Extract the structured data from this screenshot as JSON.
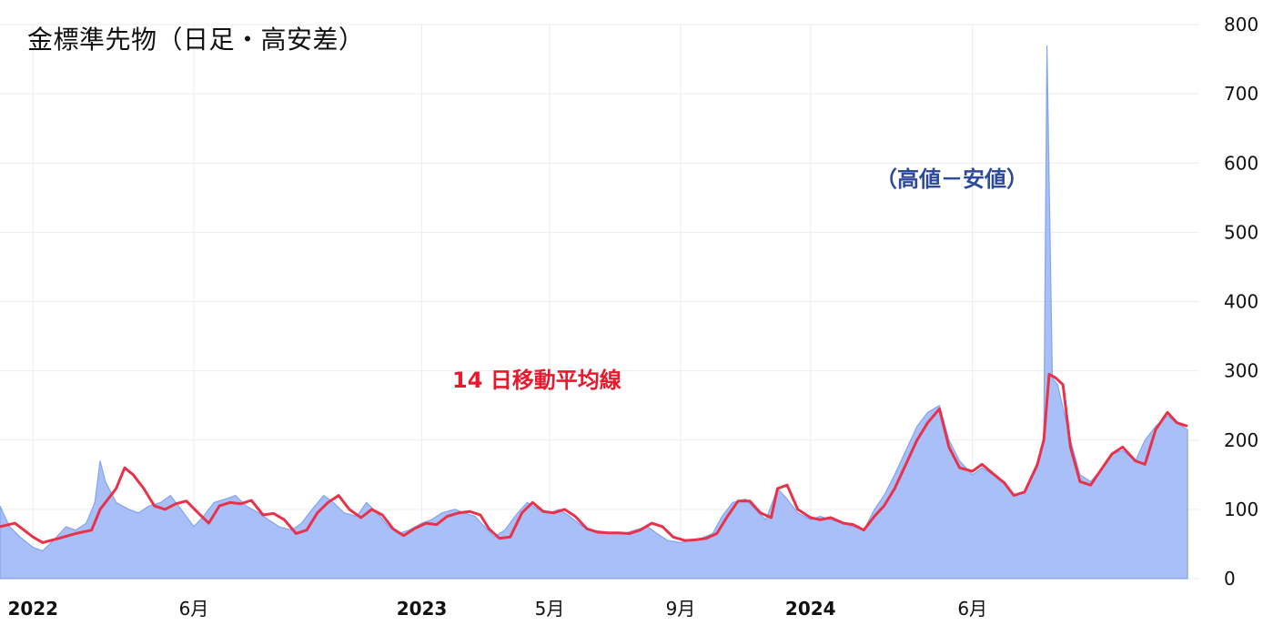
{
  "chart_data": {
    "type": "area",
    "title": "金標準先物（日足・高安差）",
    "annotations": {
      "range_label": "（高値－安値）",
      "ma_label": "14 日移動平均線"
    },
    "ylim": [
      0,
      800
    ],
    "y_ticks": [
      0,
      100,
      200,
      300,
      400,
      500,
      600,
      700,
      800
    ],
    "grid": true,
    "x_ticks": [
      {
        "date": "2022-01-01",
        "label": "2022",
        "bold": true
      },
      {
        "date": "2022-06-01",
        "label": "6月",
        "bold": false
      },
      {
        "date": "2023-01-01",
        "label": "2023",
        "bold": true
      },
      {
        "date": "2023-05-01",
        "label": "5月",
        "bold": false
      },
      {
        "date": "2023-09-01",
        "label": "9月",
        "bold": false
      },
      {
        "date": "2024-01-01",
        "label": "2024",
        "bold": true
      },
      {
        "date": "2024-06-01",
        "label": "6月",
        "bold": false
      }
    ],
    "x_range": [
      "2021-12-01",
      "2024-12-31"
    ],
    "series": [
      {
        "key": "range",
        "name": "（高値－安値）",
        "style": "area",
        "color": "#7b9ef0",
        "fill": "#a9bff8",
        "points": [
          [
            "2021-12-01",
            105
          ],
          [
            "2021-12-10",
            75
          ],
          [
            "2021-12-20",
            60
          ],
          [
            "2022-01-01",
            45
          ],
          [
            "2022-01-10",
            40
          ],
          [
            "2022-01-20",
            55
          ],
          [
            "2022-02-01",
            75
          ],
          [
            "2022-02-10",
            70
          ],
          [
            "2022-02-20",
            80
          ],
          [
            "2022-02-28",
            110
          ],
          [
            "2022-03-05",
            170
          ],
          [
            "2022-03-10",
            140
          ],
          [
            "2022-03-20",
            110
          ],
          [
            "2022-04-01",
            100
          ],
          [
            "2022-04-10",
            95
          ],
          [
            "2022-04-20",
            105
          ],
          [
            "2022-05-01",
            110
          ],
          [
            "2022-05-10",
            120
          ],
          [
            "2022-05-20",
            100
          ],
          [
            "2022-06-01",
            75
          ],
          [
            "2022-06-10",
            90
          ],
          [
            "2022-06-20",
            110
          ],
          [
            "2022-07-01",
            115
          ],
          [
            "2022-07-10",
            120
          ],
          [
            "2022-07-20",
            105
          ],
          [
            "2022-08-01",
            95
          ],
          [
            "2022-08-10",
            85
          ],
          [
            "2022-08-20",
            75
          ],
          [
            "2022-09-01",
            70
          ],
          [
            "2022-09-10",
            80
          ],
          [
            "2022-09-20",
            100
          ],
          [
            "2022-10-01",
            120
          ],
          [
            "2022-10-10",
            110
          ],
          [
            "2022-10-20",
            95
          ],
          [
            "2022-11-01",
            90
          ],
          [
            "2022-11-10",
            110
          ],
          [
            "2022-11-20",
            95
          ],
          [
            "2022-12-01",
            75
          ],
          [
            "2022-12-10",
            65
          ],
          [
            "2022-12-20",
            70
          ],
          [
            "2023-01-01",
            80
          ],
          [
            "2023-01-10",
            85
          ],
          [
            "2023-01-20",
            95
          ],
          [
            "2023-02-01",
            100
          ],
          [
            "2023-02-10",
            95
          ],
          [
            "2023-02-20",
            90
          ],
          [
            "2023-03-01",
            75
          ],
          [
            "2023-03-10",
            60
          ],
          [
            "2023-03-20",
            70
          ],
          [
            "2023-04-01",
            95
          ],
          [
            "2023-04-10",
            110
          ],
          [
            "2023-04-20",
            100
          ],
          [
            "2023-05-01",
            95
          ],
          [
            "2023-05-10",
            100
          ],
          [
            "2023-05-20",
            90
          ],
          [
            "2023-06-01",
            75
          ],
          [
            "2023-06-10",
            70
          ],
          [
            "2023-06-20",
            68
          ],
          [
            "2023-07-01",
            66
          ],
          [
            "2023-07-10",
            65
          ],
          [
            "2023-07-20",
            70
          ],
          [
            "2023-08-01",
            75
          ],
          [
            "2023-08-10",
            65
          ],
          [
            "2023-08-20",
            55
          ],
          [
            "2023-09-01",
            52
          ],
          [
            "2023-09-10",
            55
          ],
          [
            "2023-09-20",
            58
          ],
          [
            "2023-10-01",
            65
          ],
          [
            "2023-10-10",
            90
          ],
          [
            "2023-10-20",
            110
          ],
          [
            "2023-11-01",
            115
          ],
          [
            "2023-11-10",
            100
          ],
          [
            "2023-11-20",
            85
          ],
          [
            "2023-12-01",
            130
          ],
          [
            "2023-12-10",
            115
          ],
          [
            "2023-12-20",
            95
          ],
          [
            "2024-01-01",
            85
          ],
          [
            "2024-01-10",
            90
          ],
          [
            "2024-01-20",
            85
          ],
          [
            "2024-02-01",
            80
          ],
          [
            "2024-02-10",
            75
          ],
          [
            "2024-02-20",
            70
          ],
          [
            "2024-03-01",
            100
          ],
          [
            "2024-03-10",
            120
          ],
          [
            "2024-03-20",
            150
          ],
          [
            "2024-04-01",
            190
          ],
          [
            "2024-04-10",
            220
          ],
          [
            "2024-04-20",
            240
          ],
          [
            "2024-05-01",
            250
          ],
          [
            "2024-05-10",
            200
          ],
          [
            "2024-05-20",
            170
          ],
          [
            "2024-06-01",
            150
          ],
          [
            "2024-06-10",
            160
          ],
          [
            "2024-06-20",
            150
          ],
          [
            "2024-07-01",
            140
          ],
          [
            "2024-07-10",
            120
          ],
          [
            "2024-07-20",
            125
          ],
          [
            "2024-08-01",
            160
          ],
          [
            "2024-08-07",
            200
          ],
          [
            "2024-08-10",
            770
          ],
          [
            "2024-08-15",
            290
          ],
          [
            "2024-08-20",
            280
          ],
          [
            "2024-09-01",
            200
          ],
          [
            "2024-09-10",
            150
          ],
          [
            "2024-09-20",
            140
          ],
          [
            "2024-10-01",
            160
          ],
          [
            "2024-10-10",
            180
          ],
          [
            "2024-10-20",
            185
          ],
          [
            "2024-11-01",
            170
          ],
          [
            "2024-11-10",
            200
          ],
          [
            "2024-11-20",
            220
          ],
          [
            "2024-12-01",
            235
          ],
          [
            "2024-12-10",
            225
          ],
          [
            "2024-12-20",
            215
          ]
        ]
      },
      {
        "key": "ma",
        "name": "14 日移動平均線",
        "style": "line",
        "color": "#e8324a",
        "points": [
          [
            "2021-12-01",
            75
          ],
          [
            "2021-12-15",
            80
          ],
          [
            "2022-01-01",
            60
          ],
          [
            "2022-01-10",
            52
          ],
          [
            "2022-01-25",
            58
          ],
          [
            "2022-02-10",
            65
          ],
          [
            "2022-02-25",
            70
          ],
          [
            "2022-03-05",
            100
          ],
          [
            "2022-03-20",
            130
          ],
          [
            "2022-03-28",
            160
          ],
          [
            "2022-04-05",
            150
          ],
          [
            "2022-04-15",
            130
          ],
          [
            "2022-04-25",
            105
          ],
          [
            "2022-05-05",
            100
          ],
          [
            "2022-05-15",
            108
          ],
          [
            "2022-05-25",
            112
          ],
          [
            "2022-06-05",
            95
          ],
          [
            "2022-06-15",
            80
          ],
          [
            "2022-06-25",
            105
          ],
          [
            "2022-07-05",
            110
          ],
          [
            "2022-07-15",
            108
          ],
          [
            "2022-07-25",
            113
          ],
          [
            "2022-08-05",
            92
          ],
          [
            "2022-08-15",
            94
          ],
          [
            "2022-08-25",
            85
          ],
          [
            "2022-09-05",
            65
          ],
          [
            "2022-09-15",
            70
          ],
          [
            "2022-09-25",
            95
          ],
          [
            "2022-10-05",
            110
          ],
          [
            "2022-10-15",
            120
          ],
          [
            "2022-10-25",
            100
          ],
          [
            "2022-11-05",
            88
          ],
          [
            "2022-11-15",
            100
          ],
          [
            "2022-11-25",
            92
          ],
          [
            "2022-12-05",
            72
          ],
          [
            "2022-12-15",
            62
          ],
          [
            "2022-12-25",
            72
          ],
          [
            "2023-01-05",
            80
          ],
          [
            "2023-01-15",
            78
          ],
          [
            "2023-01-25",
            90
          ],
          [
            "2023-02-05",
            95
          ],
          [
            "2023-02-15",
            97
          ],
          [
            "2023-02-25",
            92
          ],
          [
            "2023-03-05",
            72
          ],
          [
            "2023-03-15",
            58
          ],
          [
            "2023-03-25",
            60
          ],
          [
            "2023-04-05",
            95
          ],
          [
            "2023-04-15",
            110
          ],
          [
            "2023-04-25",
            97
          ],
          [
            "2023-05-05",
            95
          ],
          [
            "2023-05-15",
            100
          ],
          [
            "2023-05-25",
            90
          ],
          [
            "2023-06-05",
            72
          ],
          [
            "2023-06-15",
            67
          ],
          [
            "2023-06-25",
            66
          ],
          [
            "2023-07-05",
            66
          ],
          [
            "2023-07-15",
            65
          ],
          [
            "2023-07-25",
            70
          ],
          [
            "2023-08-05",
            80
          ],
          [
            "2023-08-15",
            75
          ],
          [
            "2023-08-25",
            60
          ],
          [
            "2023-09-05",
            55
          ],
          [
            "2023-09-15",
            56
          ],
          [
            "2023-09-25",
            58
          ],
          [
            "2023-10-05",
            65
          ],
          [
            "2023-10-15",
            90
          ],
          [
            "2023-10-25",
            112
          ],
          [
            "2023-11-05",
            112
          ],
          [
            "2023-11-15",
            95
          ],
          [
            "2023-11-25",
            88
          ],
          [
            "2023-12-01",
            130
          ],
          [
            "2023-12-10",
            135
          ],
          [
            "2023-12-20",
            100
          ],
          [
            "2024-01-01",
            88
          ],
          [
            "2024-01-10",
            85
          ],
          [
            "2024-01-20",
            88
          ],
          [
            "2024-02-01",
            80
          ],
          [
            "2024-02-10",
            78
          ],
          [
            "2024-02-20",
            70
          ],
          [
            "2024-03-01",
            90
          ],
          [
            "2024-03-10",
            105
          ],
          [
            "2024-03-20",
            130
          ],
          [
            "2024-04-01",
            170
          ],
          [
            "2024-04-10",
            200
          ],
          [
            "2024-04-20",
            225
          ],
          [
            "2024-05-01",
            245
          ],
          [
            "2024-05-10",
            190
          ],
          [
            "2024-05-20",
            160
          ],
          [
            "2024-06-01",
            155
          ],
          [
            "2024-06-10",
            165
          ],
          [
            "2024-06-20",
            152
          ],
          [
            "2024-07-01",
            138
          ],
          [
            "2024-07-10",
            120
          ],
          [
            "2024-07-20",
            125
          ],
          [
            "2024-08-01",
            165
          ],
          [
            "2024-08-07",
            200
          ],
          [
            "2024-08-12",
            295
          ],
          [
            "2024-08-18",
            290
          ],
          [
            "2024-08-25",
            280
          ],
          [
            "2024-09-01",
            190
          ],
          [
            "2024-09-10",
            140
          ],
          [
            "2024-09-20",
            135
          ],
          [
            "2024-10-01",
            160
          ],
          [
            "2024-10-10",
            180
          ],
          [
            "2024-10-20",
            190
          ],
          [
            "2024-11-01",
            170
          ],
          [
            "2024-11-10",
            165
          ],
          [
            "2024-11-20",
            215
          ],
          [
            "2024-12-01",
            240
          ],
          [
            "2024-12-10",
            225
          ],
          [
            "2024-12-20",
            220
          ]
        ]
      }
    ]
  }
}
